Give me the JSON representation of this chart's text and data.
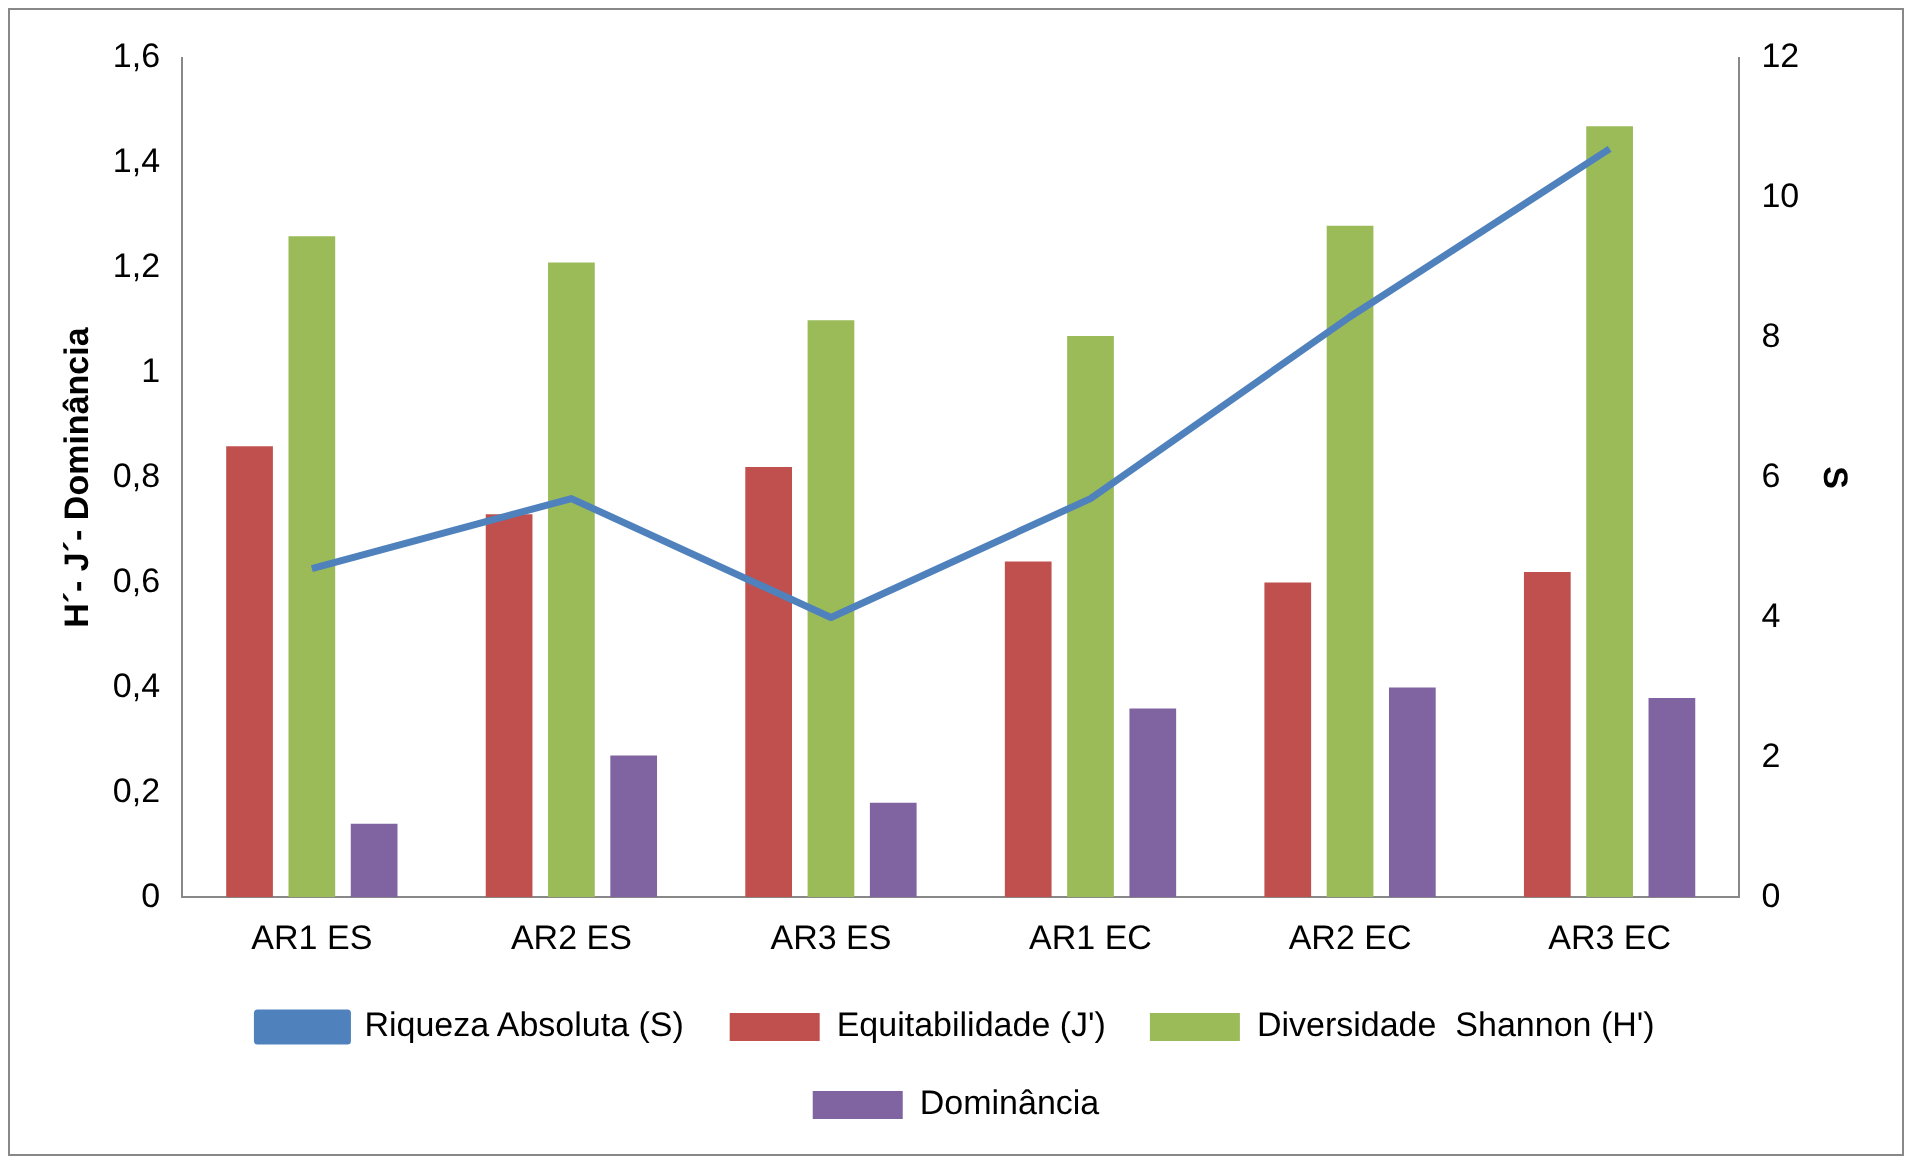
{
  "chart_data": {
    "type": "bar",
    "categories": [
      "AR1 ES",
      "AR2 ES",
      "AR3 ES",
      "AR1 EC",
      "AR2 EC",
      "AR3 EC"
    ],
    "ylabel": "H´- J´- Dominância",
    "y2label": "S",
    "series": [
      {
        "name": "Equitabilidade (J')",
        "color": "#c0504d",
        "values": [
          0.86,
          0.73,
          0.82,
          0.64,
          0.6,
          0.62
        ]
      },
      {
        "name": "Diversidade  Shannon (H')",
        "color": "#9bbb59",
        "values": [
          1.26,
          1.21,
          1.1,
          1.07,
          1.28,
          1.47
        ]
      },
      {
        "name": "Dominância",
        "color": "#8064a2",
        "values": [
          0.14,
          0.27,
          0.18,
          0.36,
          0.4,
          0.38
        ]
      },
      {
        "name": "Riqueza Absoluta (S)",
        "type": "line",
        "axis": "y2",
        "color": "#4f81bd",
        "values": [
          4.7,
          5.7,
          4.0,
          5.7,
          8.3,
          10.7
        ]
      }
    ],
    "ylim": [
      0,
      1.6
    ],
    "yticks": [
      0,
      {
        "value": 0.2,
        "label": "0,2"
      },
      {
        "value": 0.4,
        "label": "0,4"
      },
      {
        "value": 0.6,
        "label": "0,6"
      },
      {
        "value": 0.8,
        "label": "0,8"
      },
      1,
      {
        "value": 1.2,
        "label": "1,2"
      },
      {
        "value": 1.4,
        "label": "1,4"
      },
      {
        "value": 1.6,
        "label": "1,6"
      }
    ],
    "y2lim": [
      0,
      12
    ],
    "y2ticks": [
      0,
      2,
      4,
      6,
      8,
      10,
      12
    ],
    "grid": false,
    "legend": "bottom",
    "marker": "none",
    "line_style": "solid"
  }
}
